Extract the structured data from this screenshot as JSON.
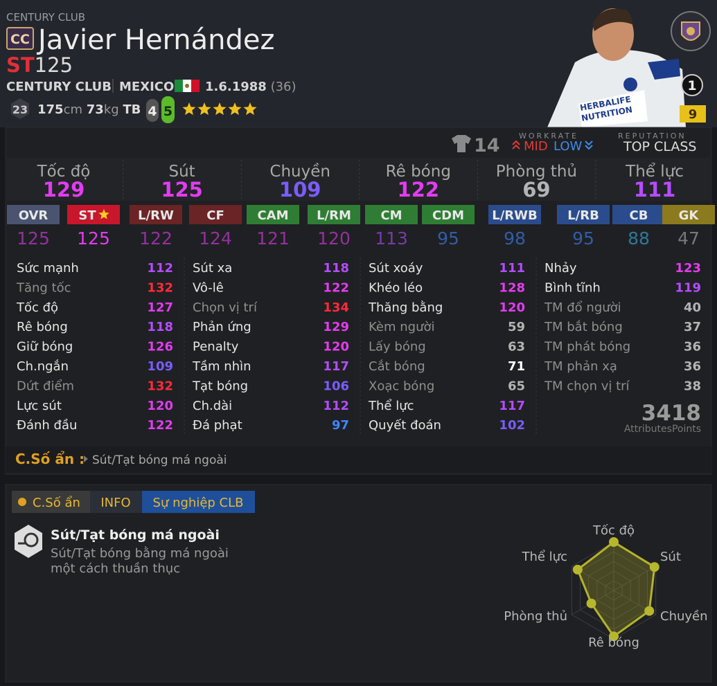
{
  "header": {
    "set_label": "CENTURY CLUB",
    "badge": "CC",
    "name": "Javier Hernández",
    "position": "ST",
    "ovr": 125,
    "club": "CENTURY CLUB",
    "nation": "MEXICO",
    "birth": "1.6.1988",
    "age": "(36)",
    "level": 23,
    "height": 175,
    "height_unit": "cm",
    "weight": 73,
    "weight_unit": "kg",
    "body": "TB",
    "skill_foot": 4,
    "weak_foot": 5,
    "stars": 5,
    "rank": 1,
    "card_level": 9
  },
  "info_bar": {
    "jersey": 14,
    "workrate_label": "WORKRATE",
    "attack": "MID",
    "defense": "LOW",
    "reputation_label": "REPUTATION",
    "reputation": "TOP CLASS"
  },
  "summary": [
    {
      "label": "Tốc độ",
      "value": 129
    },
    {
      "label": "Sút",
      "value": 125
    },
    {
      "label": "Chuyền",
      "value": 109
    },
    {
      "label": "Rê bóng",
      "value": 122
    },
    {
      "label": "Phòng thủ",
      "value": 69
    },
    {
      "label": "Thể lực",
      "value": 111
    }
  ],
  "positions": [
    {
      "label": "OVR",
      "value": 125,
      "color": "#4a5470"
    },
    {
      "label": "ST",
      "value": 125,
      "color": "#c8162c",
      "selected": true
    },
    {
      "label": "L/RW",
      "value": 122,
      "color": "#6b2426"
    },
    {
      "label": "CF",
      "value": 124,
      "color": "#6b2426"
    },
    {
      "label": "CAM",
      "value": 121,
      "color": "#2f7d34"
    },
    {
      "label": "L/RM",
      "value": 120,
      "color": "#2f7d34"
    },
    {
      "label": "CM",
      "value": 113,
      "color": "#2f7d34"
    },
    {
      "label": "CDM",
      "value": 95,
      "color": "#2f7d34"
    },
    {
      "label": "L/RWB",
      "value": 98,
      "color": "#2b4c8c"
    },
    {
      "label": "L/RB",
      "value": 95,
      "color": "#2b4c8c"
    },
    {
      "label": "CB",
      "value": 88,
      "color": "#2b4c8c"
    },
    {
      "label": "GK",
      "value": 47,
      "color": "#8c7a1e"
    }
  ],
  "attributes": [
    [
      {
        "name": "Sức mạnh",
        "value": 112
      },
      {
        "name": "Tăng tốc",
        "value": 132,
        "dim": true
      },
      {
        "name": "Tốc độ",
        "value": 127
      },
      {
        "name": "Rê bóng",
        "value": 118
      },
      {
        "name": "Giữ bóng",
        "value": 126
      },
      {
        "name": "Ch.ngắn",
        "value": 109
      },
      {
        "name": "Dứt điểm",
        "value": 132,
        "dim": true
      },
      {
        "name": "Lực sút",
        "value": 120
      },
      {
        "name": "Đánh đầu",
        "value": 122
      }
    ],
    [
      {
        "name": "Sút xa",
        "value": 118
      },
      {
        "name": "Vô-lê",
        "value": 122
      },
      {
        "name": "Chọn vị trí",
        "value": 134,
        "dim": true
      },
      {
        "name": "Phản ứng",
        "value": 129
      },
      {
        "name": "Penalty",
        "value": 120
      },
      {
        "name": "Tầm nhìn",
        "value": 117
      },
      {
        "name": "Tạt bóng",
        "value": 106
      },
      {
        "name": "Ch.dài",
        "value": 112
      },
      {
        "name": "Đá phạt",
        "value": 97
      }
    ],
    [
      {
        "name": "Sút xoáy",
        "value": 111
      },
      {
        "name": "Khéo léo",
        "value": 128
      },
      {
        "name": "Thăng bằng",
        "value": 120
      },
      {
        "name": "Kèm người",
        "value": 59,
        "dim": true
      },
      {
        "name": "Lấy bóng",
        "value": 63,
        "dim": true
      },
      {
        "name": "Cắt bóng",
        "value": 71,
        "dim": true
      },
      {
        "name": "Xoạc bóng",
        "value": 65,
        "dim": true
      },
      {
        "name": "Thể lực",
        "value": 117
      },
      {
        "name": "Quyết đoán",
        "value": 102
      }
    ],
    [
      {
        "name": "Nhảy",
        "value": 123
      },
      {
        "name": "Bình tĩnh",
        "value": 119
      },
      {
        "name": "TM đổ người",
        "value": 40,
        "dim": true
      },
      {
        "name": "TM bắt bóng",
        "value": 37,
        "dim": true
      },
      {
        "name": "TM phát bóng",
        "value": 36,
        "dim": true
      },
      {
        "name": "TM phản xạ",
        "value": 36,
        "dim": true
      },
      {
        "name": "TM chọn vị trí",
        "value": 38,
        "dim": true
      }
    ]
  ],
  "total": {
    "value": 3418,
    "label": "AttributesPoints"
  },
  "hidden": {
    "label": "C.Số ẩn :",
    "items": [
      "Sút/Tạt bóng má ngoài"
    ]
  },
  "tabs": [
    "C.Số ẩn",
    "INFO",
    "Sự nghiệp CLB"
  ],
  "trait": {
    "title": "Sút/Tạt bóng má ngoài",
    "description": [
      "Sút/Tạt bóng bằng má ngoài",
      "một cách thuần thục"
    ]
  }
}
